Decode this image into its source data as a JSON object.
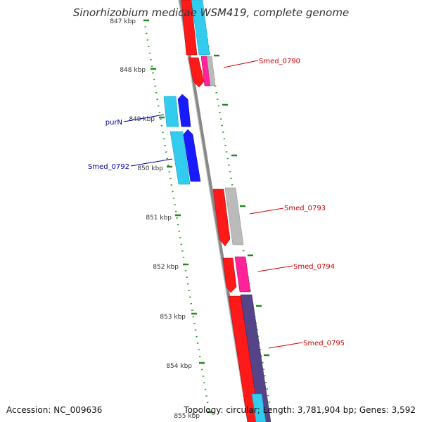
{
  "title": "Sinorhizobium medicae WSM419, complete genome",
  "footer": {
    "accession": "Accession: NC_009636",
    "topology": "Topology: circular; Length: 3,781,904 bp; Genes: 3,592"
  },
  "ticks": [
    "847 kbp",
    "848 kbp",
    "849 kbp",
    "850 kbp",
    "851 kbp",
    "852 kbp",
    "853 kbp",
    "854 kbp",
    "855 kbp"
  ],
  "colors": {
    "forward_label": "#cc0000",
    "reverse_label": "#0000aa",
    "backbone": "#888888",
    "tick": "#228822",
    "cds_red": "#ff1a1a",
    "cds_blue": "#1a1aff",
    "cds_cyan": "#33ccee",
    "cds_magenta": "#ff2299",
    "cds_gray": "#bbbbbb",
    "cds_purple": "#554488"
  },
  "labels": [
    {
      "text": "Smed_0790",
      "strand": "forward"
    },
    {
      "text": "purN",
      "strand": "reverse"
    },
    {
      "text": "Smed_0792",
      "strand": "reverse"
    },
    {
      "text": "Smed_0793",
      "strand": "forward"
    },
    {
      "text": "Smed_0794",
      "strand": "forward"
    },
    {
      "text": "Smed_0795",
      "strand": "forward"
    }
  ]
}
